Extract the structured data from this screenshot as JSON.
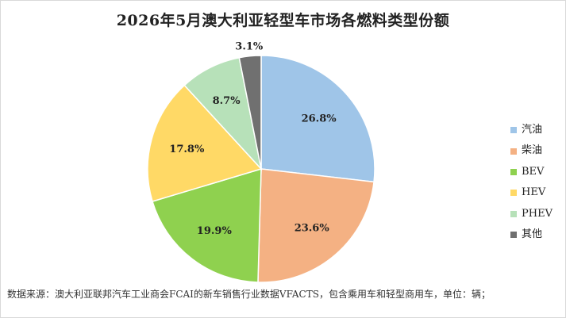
{
  "chart_data": {
    "type": "pie",
    "title": "2026年5月澳大利亚轻型车市场各燃料类型份额",
    "categories": [
      "汽油",
      "柴油",
      "BEV",
      "HEV",
      "PHEV",
      "其他"
    ],
    "values": [
      26.8,
      23.6,
      19.9,
      17.8,
      8.7,
      3.1
    ],
    "data_labels": [
      "26.8%",
      "23.6%",
      "19.9%",
      "17.8%",
      "8.7%",
      "3.1%"
    ],
    "colors": [
      "#9fc5e8",
      "#f4b183",
      "#8fd14f",
      "#ffd966",
      "#b7e1b9",
      "#707070"
    ],
    "legend_position": "right",
    "start": "top, clockwise"
  },
  "source": "数据来源：澳大利亚联邦汽车工业商会FCAI的新车销售行业数据VFACTS，包含乘用车和轻型商用车，单位：辆；"
}
